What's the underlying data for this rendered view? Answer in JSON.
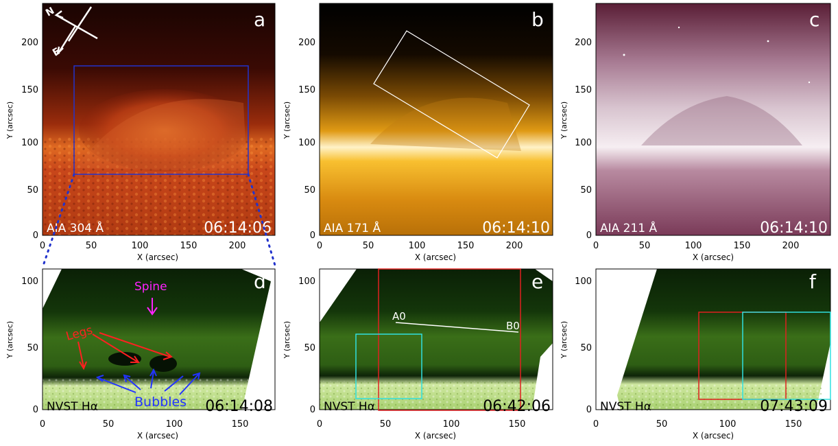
{
  "figure": {
    "panels": [
      {
        "id": "a",
        "letter": "a",
        "instrument": "AIA 304 Å",
        "time": "06:14:06",
        "xlabel": "X (arcsec)",
        "ylabel": "Y (arcsec)",
        "xticks": [
          "0",
          "50",
          "100",
          "150",
          "200"
        ],
        "yticks": [
          "0",
          "50",
          "100",
          "150",
          "200"
        ],
        "compass": {
          "north": "N",
          "east": "E"
        }
      },
      {
        "id": "b",
        "letter": "b",
        "instrument": "AIA 171 Å",
        "time": "06:14:10",
        "xlabel": "X (arcsec)",
        "ylabel": "Y (arcsec)",
        "xticks": [
          "0",
          "50",
          "100",
          "150",
          "200"
        ],
        "yticks": [
          "0",
          "50",
          "100",
          "150",
          "200"
        ]
      },
      {
        "id": "c",
        "letter": "c",
        "instrument": "AIA 211 Å",
        "time": "06:14:10",
        "xlabel": "X (arcsec)",
        "ylabel": "Y (arcsec)",
        "xticks": [
          "0",
          "50",
          "100",
          "150",
          "200"
        ],
        "yticks": [
          "0",
          "50",
          "100",
          "150",
          "200"
        ]
      },
      {
        "id": "d",
        "letter": "d",
        "instrument": "NVST Hα",
        "time": "06:14:08",
        "xlabel": "X (arcsec)",
        "ylabel": "Y (arcsec)",
        "xticks": [
          "0",
          "50",
          "100",
          "150"
        ],
        "yticks": [
          "0",
          "50",
          "100"
        ],
        "annotations": {
          "spine": "Spine",
          "legs": "Legs",
          "bubbles": "Bubbles"
        }
      },
      {
        "id": "e",
        "letter": "e",
        "instrument": "NVST Hα",
        "time": "06:42:06",
        "xlabel": "X (arcsec)",
        "ylabel": "Y (arcsec)",
        "xticks": [
          "0",
          "50",
          "100",
          "150"
        ],
        "yticks": [
          "0",
          "50",
          "100"
        ],
        "slit": {
          "start": "A0",
          "end": "B0"
        }
      },
      {
        "id": "f",
        "letter": "f",
        "instrument": "NVST Hα",
        "time": "07:43:09",
        "xlabel": "X (arcsec)",
        "ylabel": "Y (arcsec)",
        "xticks": [
          "0",
          "50",
          "100",
          "150"
        ],
        "yticks": [
          "0",
          "50",
          "100"
        ]
      }
    ],
    "colors": {
      "aia304": "#c8461a",
      "aia171": "#f0a818",
      "aia211": "#b88aa0",
      "halpha": "#5a9a2a",
      "box_blue": "#2233cc",
      "box_red": "#e02020",
      "box_cyan": "#30e0e0",
      "spine_label": "#ff22ff",
      "legs_label": "#ff2020",
      "bubbles_label": "#2233ff"
    }
  }
}
